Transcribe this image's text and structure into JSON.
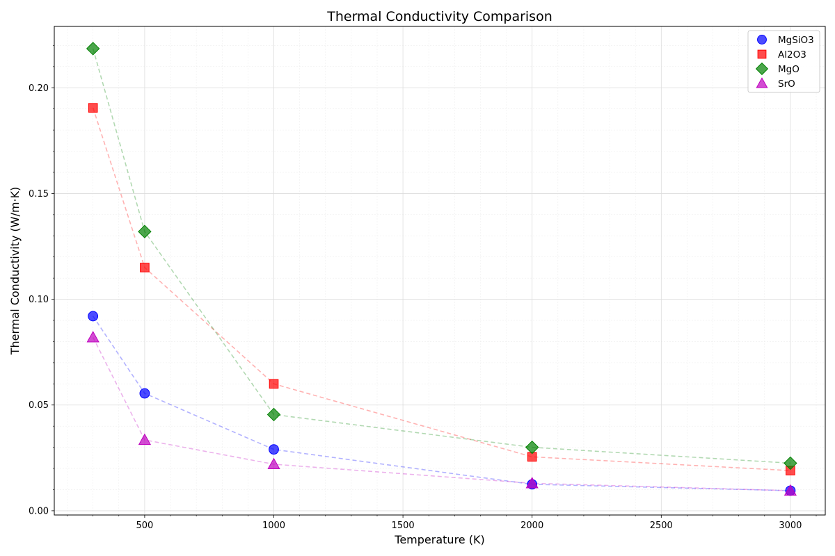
{
  "chart_data": {
    "type": "scatter",
    "title": "Thermal Conductivity Comparison",
    "xlabel": "Temperature (K)",
    "ylabel": "Thermal Conductivity (W/m·K)",
    "xlim": [
      150,
      3135
    ],
    "ylim": [
      -0.002,
      0.229
    ],
    "xticks": [
      500,
      1000,
      1500,
      2000,
      2500,
      3000
    ],
    "yticks": [
      0.0,
      0.05,
      0.1,
      0.15,
      0.2
    ],
    "ytick_labels": [
      "0.00",
      "0.05",
      "0.10",
      "0.15",
      "0.20"
    ],
    "grid": true,
    "minor_grid": true,
    "legend_position": "top-right",
    "connecting_lines": "dashed",
    "x": [
      300,
      500,
      1000,
      2000,
      3000
    ],
    "series": [
      {
        "name": "MgSiO3",
        "marker": "circle",
        "color": "#0000ff",
        "values": [
          0.092,
          0.0555,
          0.029,
          0.0125,
          0.0095
        ]
      },
      {
        "name": "Al2O3",
        "marker": "square",
        "color": "#ff0000",
        "values": [
          0.1905,
          0.115,
          0.06,
          0.0255,
          0.019
        ]
      },
      {
        "name": "MgO",
        "marker": "diamond",
        "color": "#008000",
        "values": [
          0.2185,
          0.132,
          0.0455,
          0.03,
          0.0225
        ]
      },
      {
        "name": "SrO",
        "marker": "triangle",
        "color": "#bf00bf",
        "values": [
          0.082,
          0.0335,
          0.022,
          0.013,
          0.0095
        ]
      }
    ]
  }
}
